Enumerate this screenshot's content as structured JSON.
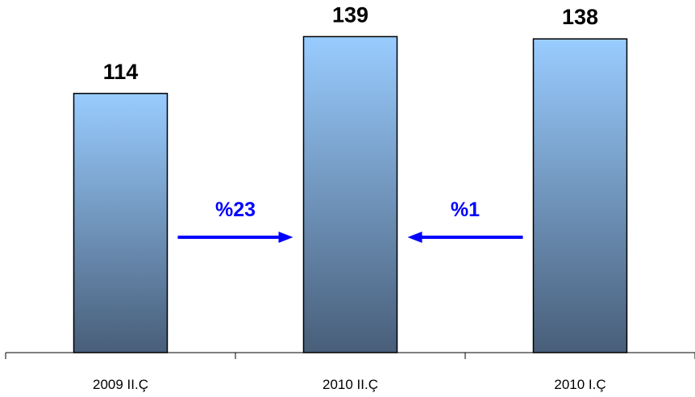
{
  "chart_data": {
    "type": "bar",
    "categories": [
      "2009 II.Ç",
      "2010 II.Ç",
      "2010 I.Ç"
    ],
    "values": [
      114,
      139,
      138
    ],
    "data_labels": [
      "114",
      "139",
      "138"
    ],
    "ylim": [
      0,
      148
    ],
    "grid": false,
    "legend": "none",
    "bar_gradient": {
      "top": "#99ccff",
      "bottom": "#485e79"
    },
    "bar_border_color": "#000000",
    "annotations": [
      {
        "label": "%23",
        "from_category": 0,
        "to_category": 1,
        "direction": "right",
        "color": "#0000ff"
      },
      {
        "label": "%1",
        "from_category": 2,
        "to_category": 1,
        "direction": "left",
        "color": "#0000ff"
      }
    ]
  }
}
